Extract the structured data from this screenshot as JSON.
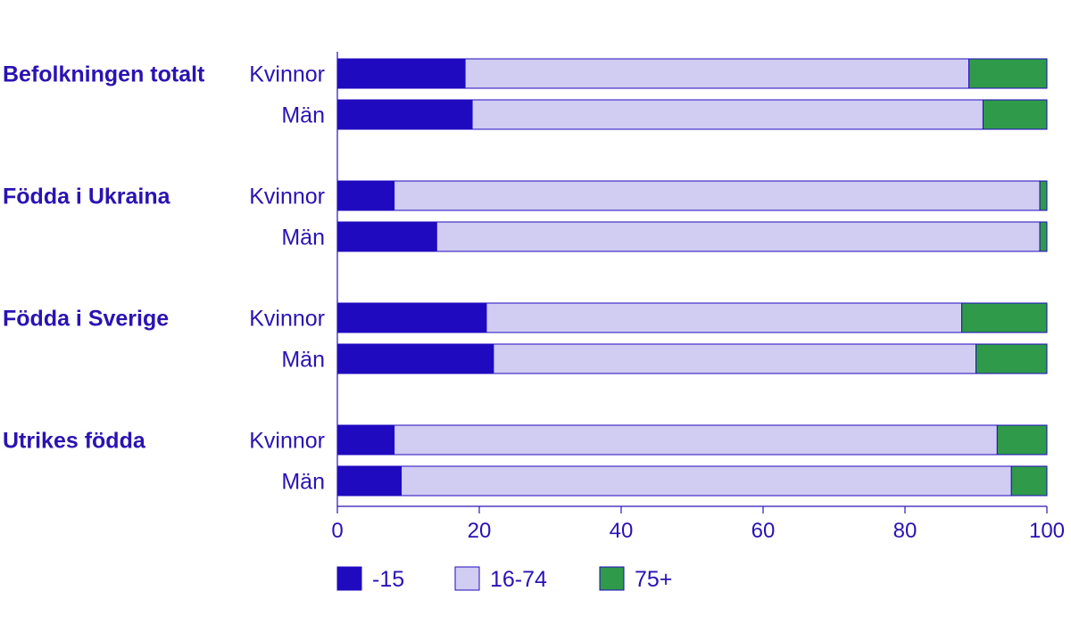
{
  "chart_data": {
    "type": "bar",
    "orientation": "horizontal",
    "stacked": true,
    "title": "",
    "xlabel": "",
    "ylabel": "",
    "xlim": [
      0,
      100
    ],
    "x_ticks": [
      0,
      20,
      40,
      60,
      80,
      100
    ],
    "grid": false,
    "legend_position": "bottom-left",
    "groups": [
      {
        "name": "Befolkningen totalt",
        "rows": [
          {
            "label": "Kvinnor",
            "values": [
              18,
              71,
              11
            ]
          },
          {
            "label": "Män",
            "values": [
              19,
              72,
              9
            ]
          }
        ]
      },
      {
        "name": "Födda i Ukraina",
        "rows": [
          {
            "label": "Kvinnor",
            "values": [
              8,
              91,
              1
            ]
          },
          {
            "label": "Män",
            "values": [
              14,
              85,
              1
            ]
          }
        ]
      },
      {
        "name": "Födda i Sverige",
        "rows": [
          {
            "label": "Kvinnor",
            "values": [
              21,
              67,
              12
            ]
          },
          {
            "label": "Män",
            "values": [
              22,
              68,
              10
            ]
          }
        ]
      },
      {
        "name": "Utrikes födda",
        "rows": [
          {
            "label": "Kvinnor",
            "values": [
              8,
              85,
              7
            ]
          },
          {
            "label": "Män",
            "values": [
              9,
              86,
              5
            ]
          }
        ]
      }
    ],
    "series": [
      {
        "name": "-15",
        "color": "#1f0abf"
      },
      {
        "name": "16-74",
        "color": "#d0ccf2"
      },
      {
        "name": "75+",
        "color": "#2f9a4a"
      }
    ],
    "text_color": "#2a13b3",
    "axis_color": "#2a13b3"
  }
}
